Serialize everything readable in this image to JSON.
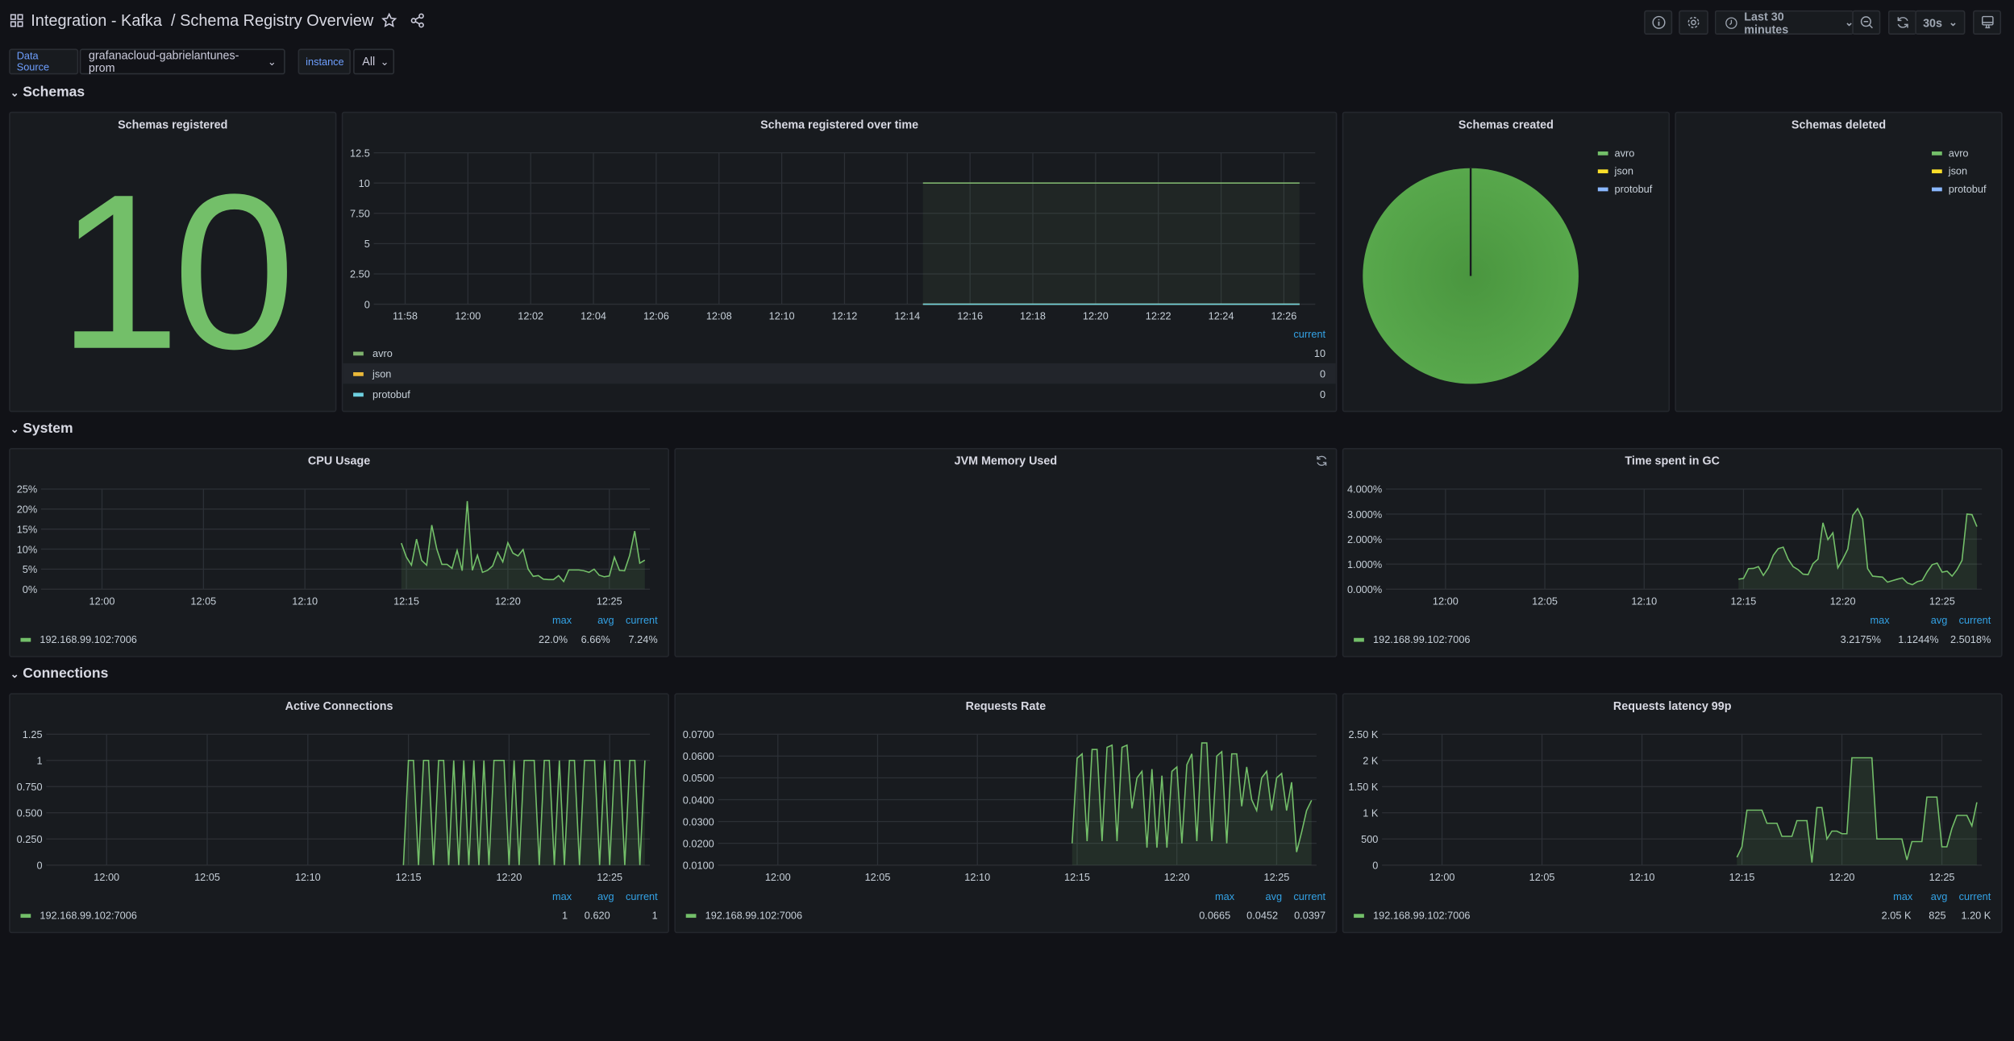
{
  "header": {
    "title": "Integration - Kafka  / Schema Registry Overview",
    "time_range": "Last 30 minutes",
    "refresh_interval": "30s",
    "icons": [
      "dashboard-grid-icon",
      "star-icon",
      "share-icon",
      "info-icon",
      "gear-icon",
      "clock-icon",
      "zoom-out-icon",
      "refresh-icon",
      "monitor-icon"
    ]
  },
  "variables": [
    {
      "label": "Data Source",
      "value": "grafanacloud-gabrielantunes-prom"
    },
    {
      "label": "instance",
      "value": "All"
    }
  ],
  "rows": {
    "schemas": "Schemas",
    "system": "System",
    "connections": "Connections"
  },
  "colors": {
    "green": "#73bf69",
    "legend_header": "#33a2e5",
    "avro": "#7eb26d",
    "json": "#eab839",
    "protobuf": "#6ed0e0",
    "pie_json": "#fade2a",
    "pie_protobuf": "#8ab8ff"
  },
  "panels": {
    "schemas_registered": {
      "title": "Schemas registered",
      "value": "10"
    },
    "schemas_created": {
      "title": "Schemas created",
      "legend": [
        "avro",
        "json",
        "protobuf"
      ]
    },
    "schemas_deleted": {
      "title": "Schemas deleted",
      "legend": [
        "avro",
        "json",
        "protobuf"
      ]
    },
    "jvm_memory": {
      "title": "JVM Memory Used"
    },
    "schema_over_time": {
      "title": "Schema registered over time",
      "legend_header": "current",
      "legend": [
        {
          "name": "avro",
          "current": "10"
        },
        {
          "name": "json",
          "current": "0"
        },
        {
          "name": "protobuf",
          "current": "0"
        }
      ]
    },
    "cpu": {
      "title": "CPU Usage",
      "legend_headers": [
        "max",
        "avg",
        "current"
      ],
      "series": "192.168.99.102:7006",
      "stats": [
        "22.0%",
        "6.66%",
        "7.24%"
      ]
    },
    "gc": {
      "title": "Time spent in GC",
      "legend_headers": [
        "max",
        "avg",
        "current"
      ],
      "series": "192.168.99.102:7006",
      "stats": [
        "3.2175%",
        "1.1244%",
        "2.5018%"
      ]
    },
    "active_connections": {
      "title": "Active Connections",
      "legend_headers": [
        "max",
        "avg",
        "current"
      ],
      "series": "192.168.99.102:7006",
      "stats": [
        "1",
        "0.620",
        "1"
      ]
    },
    "requests_rate": {
      "title": "Requests Rate",
      "legend_headers": [
        "max",
        "avg",
        "current"
      ],
      "series": "192.168.99.102:7006",
      "stats": [
        "0.0665",
        "0.0452",
        "0.0397"
      ]
    },
    "requests_latency": {
      "title": "Requests latency 99p",
      "legend_headers": [
        "max",
        "avg",
        "current"
      ],
      "series": "192.168.99.102:7006",
      "stats": [
        "2.05 K",
        "825",
        "1.20 K"
      ]
    }
  },
  "chart_data": [
    {
      "id": "schema_over_time",
      "type": "line",
      "xlim": [
        "11:57",
        "12:27"
      ],
      "xticks": [
        "11:58",
        "12:00",
        "12:02",
        "12:04",
        "12:06",
        "12:08",
        "12:10",
        "12:12",
        "12:14",
        "12:16",
        "12:18",
        "12:20",
        "12:22",
        "12:24",
        "12:26"
      ],
      "ylim": [
        0,
        12.5
      ],
      "yticks": [
        0,
        2.5,
        5,
        7.5,
        10,
        12.5
      ],
      "ytick_labels": [
        "0",
        "2.50",
        "5",
        "7.50",
        "10",
        "12.5"
      ],
      "grid": true,
      "x": [
        "12:14:30",
        "12:26:30"
      ],
      "series": [
        {
          "name": "avro",
          "color": "#7eb26d",
          "values": [
            10,
            10
          ]
        },
        {
          "name": "json",
          "color": "#eab839",
          "values": [
            0,
            0
          ]
        },
        {
          "name": "protobuf",
          "color": "#6ed0e0",
          "values": [
            0,
            0
          ]
        }
      ]
    },
    {
      "id": "schemas_created",
      "type": "pie",
      "slices": [
        {
          "name": "avro",
          "value": 10,
          "color": "#56a64b"
        },
        {
          "name": "json",
          "value": 0,
          "color": "#fade2a"
        },
        {
          "name": "protobuf",
          "value": 0,
          "color": "#8ab8ff"
        }
      ]
    },
    {
      "id": "cpu",
      "type": "area",
      "xlim": [
        "11:57",
        "12:27"
      ],
      "xticks": [
        "12:00",
        "12:05",
        "12:10",
        "12:15",
        "12:20",
        "12:25"
      ],
      "ylim": [
        0,
        25
      ],
      "yticks": [
        0,
        5,
        10,
        15,
        20,
        25
      ],
      "ytick_labels": [
        "0%",
        "5%",
        "10%",
        "15%",
        "20%",
        "25%"
      ],
      "grid": true,
      "x": [
        "12:14:45",
        "12:15:00",
        "12:15:15",
        "12:15:30",
        "12:15:45",
        "12:16:00",
        "12:16:15",
        "12:16:30",
        "12:16:45",
        "12:17:00",
        "12:17:15",
        "12:17:30",
        "12:17:45",
        "12:18:00",
        "12:18:15",
        "12:18:30",
        "12:18:45",
        "12:19:00",
        "12:19:15",
        "12:19:30",
        "12:19:45",
        "12:20:00",
        "12:20:15",
        "12:20:30",
        "12:20:45",
        "12:21:00",
        "12:21:15",
        "12:21:30",
        "12:21:45",
        "12:22:00",
        "12:22:15",
        "12:22:30",
        "12:22:45",
        "12:23:00",
        "12:23:15",
        "12:23:30",
        "12:23:45",
        "12:24:00",
        "12:24:15",
        "12:24:30",
        "12:24:45",
        "12:25:00",
        "12:25:15",
        "12:25:30",
        "12:25:45",
        "12:26:00",
        "12:26:15",
        "12:26:30",
        "12:26:45"
      ],
      "series": [
        {
          "name": "192.168.99.102:7006",
          "color": "#73bf69",
          "values": [
            11.5,
            8,
            6,
            12.5,
            7.2,
            6,
            16,
            10,
            6.2,
            6.2,
            5.2,
            9.7,
            4.6,
            22,
            4.7,
            8.5,
            4.2,
            4.7,
            5.8,
            9.2,
            6.8,
            11.6,
            9,
            8.3,
            9.9,
            5,
            3.2,
            3.4,
            2.5,
            2.4,
            2.4,
            3.4,
            1.9,
            4.8,
            4.8,
            4.8,
            4.6,
            4.2,
            5,
            3.5,
            3.1,
            3.3,
            8,
            4.7,
            4.6,
            8.4,
            14.5,
            6.5,
            7.24
          ]
        }
      ]
    },
    {
      "id": "gc",
      "type": "area",
      "xlim": [
        "11:57",
        "12:27"
      ],
      "xticks": [
        "12:00",
        "12:05",
        "12:10",
        "12:15",
        "12:20",
        "12:25"
      ],
      "ylim": [
        0,
        4
      ],
      "yticks": [
        0,
        1,
        2,
        3,
        4
      ],
      "ytick_labels": [
        "0.000%",
        "1.000%",
        "2.000%",
        "3.000%",
        "4.000%"
      ],
      "grid": true,
      "x": [
        "12:14:45",
        "12:15:00",
        "12:15:15",
        "12:15:30",
        "12:15:45",
        "12:16:00",
        "12:16:15",
        "12:16:30",
        "12:16:45",
        "12:17:00",
        "12:17:15",
        "12:17:30",
        "12:17:45",
        "12:18:00",
        "12:18:15",
        "12:18:30",
        "12:18:45",
        "12:19:00",
        "12:19:15",
        "12:19:30",
        "12:19:45",
        "12:20:00",
        "12:20:15",
        "12:20:30",
        "12:20:45",
        "12:21:00",
        "12:21:15",
        "12:21:30",
        "12:21:45",
        "12:22:00",
        "12:22:15",
        "12:22:30",
        "12:22:45",
        "12:23:00",
        "12:23:15",
        "12:23:30",
        "12:23:45",
        "12:24:00",
        "12:24:15",
        "12:24:30",
        "12:24:45",
        "12:25:00",
        "12:25:15",
        "12:25:30",
        "12:25:45",
        "12:26:00",
        "12:26:15",
        "12:26:30",
        "12:26:45"
      ],
      "series": [
        {
          "name": "192.168.99.102:7006",
          "color": "#73bf69",
          "values": [
            0.4,
            0.43,
            0.82,
            0.83,
            0.9,
            0.55,
            0.85,
            1.35,
            1.62,
            1.68,
            1.2,
            0.9,
            0.78,
            0.6,
            0.58,
            1.02,
            1.2,
            2.65,
            1.98,
            2.25,
            0.85,
            1.2,
            1.6,
            2.95,
            3.2175,
            2.8,
            0.82,
            0.52,
            0.5,
            0.48,
            0.28,
            0.34,
            0.4,
            0.45,
            0.25,
            0.18,
            0.3,
            0.35,
            0.7,
            0.98,
            1.04,
            0.68,
            0.72,
            0.52,
            0.78,
            1.15,
            3.0,
            2.98,
            2.5018
          ]
        }
      ]
    },
    {
      "id": "active_connections",
      "type": "area",
      "xlim": [
        "11:57",
        "12:27"
      ],
      "xticks": [
        "12:00",
        "12:05",
        "12:10",
        "12:15",
        "12:20",
        "12:25"
      ],
      "ylim": [
        0,
        1.25
      ],
      "yticks": [
        0,
        0.25,
        0.5,
        0.75,
        1,
        1.25
      ],
      "ytick_labels": [
        "0",
        "0.250",
        "0.500",
        "0.750",
        "1",
        "1.25"
      ],
      "grid": true,
      "x": [
        "12:14:45",
        "12:15:00",
        "12:15:15",
        "12:15:30",
        "12:15:45",
        "12:16:00",
        "12:16:15",
        "12:16:30",
        "12:16:45",
        "12:17:00",
        "12:17:15",
        "12:17:30",
        "12:17:45",
        "12:18:00",
        "12:18:15",
        "12:18:30",
        "12:18:45",
        "12:19:00",
        "12:19:15",
        "12:19:30",
        "12:19:45",
        "12:20:00",
        "12:20:15",
        "12:20:30",
        "12:20:45",
        "12:21:00",
        "12:21:15",
        "12:21:30",
        "12:21:45",
        "12:22:00",
        "12:22:15",
        "12:22:30",
        "12:22:45",
        "12:23:00",
        "12:23:15",
        "12:23:30",
        "12:23:45",
        "12:24:00",
        "12:24:15",
        "12:24:30",
        "12:24:45",
        "12:25:00",
        "12:25:15",
        "12:25:30",
        "12:25:45",
        "12:26:00",
        "12:26:15",
        "12:26:30",
        "12:26:45"
      ],
      "series": [
        {
          "name": "192.168.99.102:7006",
          "color": "#73bf69",
          "values": [
            0,
            1,
            1,
            0,
            1,
            1,
            0,
            1,
            1,
            0,
            1,
            0,
            1,
            0,
            1,
            0,
            1,
            0,
            1,
            1,
            1,
            0,
            1,
            0,
            1,
            1,
            1,
            0,
            1,
            1,
            0,
            1,
            0,
            1,
            1,
            0,
            1,
            1,
            1,
            0,
            1,
            0,
            1,
            1,
            0,
            1,
            1,
            0,
            1
          ]
        }
      ]
    },
    {
      "id": "requests_rate",
      "type": "area",
      "xlim": [
        "11:57",
        "12:27"
      ],
      "xticks": [
        "12:00",
        "12:05",
        "12:10",
        "12:15",
        "12:20",
        "12:25"
      ],
      "ylim": [
        0.01,
        0.07
      ],
      "yticks": [
        0.01,
        0.02,
        0.03,
        0.04,
        0.05,
        0.06,
        0.07
      ],
      "ytick_labels": [
        "0.0100",
        "0.0200",
        "0.0300",
        "0.0400",
        "0.0500",
        "0.0600",
        "0.0700"
      ],
      "grid": true,
      "x": [
        "12:14:45",
        "12:15:00",
        "12:15:15",
        "12:15:30",
        "12:15:45",
        "12:16:00",
        "12:16:15",
        "12:16:30",
        "12:16:45",
        "12:17:00",
        "12:17:15",
        "12:17:30",
        "12:17:45",
        "12:18:00",
        "12:18:15",
        "12:18:30",
        "12:18:45",
        "12:19:00",
        "12:19:15",
        "12:19:30",
        "12:19:45",
        "12:20:00",
        "12:20:15",
        "12:20:30",
        "12:20:45",
        "12:21:00",
        "12:21:15",
        "12:21:30",
        "12:21:45",
        "12:22:00",
        "12:22:15",
        "12:22:30",
        "12:22:45",
        "12:23:00",
        "12:23:15",
        "12:23:30",
        "12:23:45",
        "12:24:00",
        "12:24:15",
        "12:24:30",
        "12:24:45",
        "12:25:00",
        "12:25:15",
        "12:25:30",
        "12:25:45",
        "12:26:00",
        "12:26:15",
        "12:26:30",
        "12:26:45"
      ],
      "series": [
        {
          "name": "192.168.99.102:7006",
          "color": "#73bf69",
          "values": [
            0.02,
            0.059,
            0.061,
            0.021,
            0.063,
            0.063,
            0.021,
            0.064,
            0.065,
            0.021,
            0.064,
            0.065,
            0.036,
            0.05,
            0.053,
            0.018,
            0.054,
            0.018,
            0.051,
            0.018,
            0.053,
            0.055,
            0.02,
            0.056,
            0.061,
            0.021,
            0.066,
            0.066,
            0.021,
            0.06,
            0.062,
            0.02,
            0.061,
            0.061,
            0.037,
            0.055,
            0.04,
            0.035,
            0.05,
            0.053,
            0.035,
            0.05,
            0.052,
            0.035,
            0.048,
            0.016,
            0.025,
            0.035,
            0.0397
          ]
        }
      ]
    },
    {
      "id": "requests_latency",
      "type": "area",
      "xlim": [
        "11:57",
        "12:27"
      ],
      "xticks": [
        "12:00",
        "12:05",
        "12:10",
        "12:15",
        "12:20",
        "12:25"
      ],
      "ylim": [
        0,
        2500
      ],
      "yticks": [
        0,
        500,
        1000,
        1500,
        2000,
        2500
      ],
      "ytick_labels": [
        "0",
        "500",
        "1 K",
        "1.50 K",
        "2 K",
        "2.50 K"
      ],
      "grid": true,
      "x": [
        "12:14:45",
        "12:15:00",
        "12:15:15",
        "12:15:30",
        "12:15:45",
        "12:16:00",
        "12:16:15",
        "12:16:30",
        "12:16:45",
        "12:17:00",
        "12:17:15",
        "12:17:30",
        "12:17:45",
        "12:18:00",
        "12:18:15",
        "12:18:30",
        "12:18:45",
        "12:19:00",
        "12:19:15",
        "12:19:30",
        "12:19:45",
        "12:20:00",
        "12:20:15",
        "12:20:30",
        "12:20:45",
        "12:21:00",
        "12:21:15",
        "12:21:30",
        "12:21:45",
        "12:22:00",
        "12:22:15",
        "12:22:30",
        "12:22:45",
        "12:23:00",
        "12:23:15",
        "12:23:30",
        "12:23:45",
        "12:24:00",
        "12:24:15",
        "12:24:30",
        "12:24:45",
        "12:25:00",
        "12:25:15",
        "12:25:30",
        "12:25:45",
        "12:26:00",
        "12:26:15",
        "12:26:30",
        "12:26:45"
      ],
      "series": [
        {
          "name": "192.168.99.102:7006",
          "color": "#73bf69",
          "values": [
            150,
            350,
            1050,
            1050,
            1050,
            1050,
            800,
            800,
            800,
            550,
            550,
            550,
            850,
            850,
            850,
            50,
            1100,
            1100,
            500,
            650,
            650,
            600,
            600,
            2050,
            2050,
            2050,
            2050,
            2050,
            500,
            500,
            500,
            500,
            500,
            500,
            100,
            450,
            450,
            450,
            1300,
            1300,
            1300,
            350,
            350,
            700,
            950,
            950,
            950,
            750,
            1200
          ]
        }
      ]
    }
  ]
}
